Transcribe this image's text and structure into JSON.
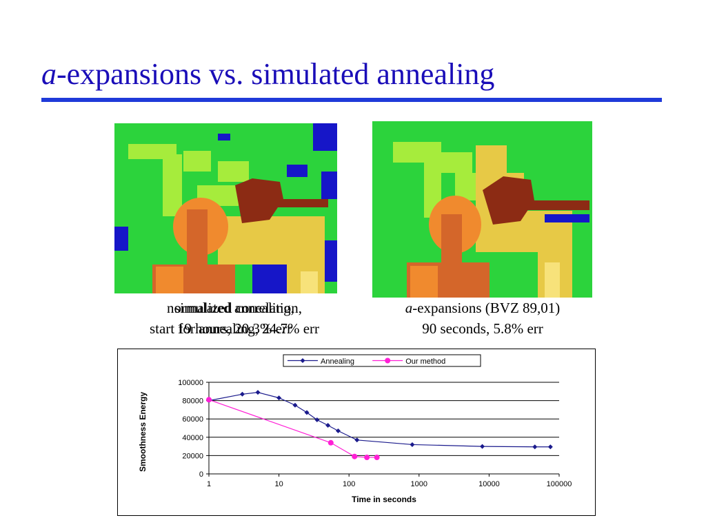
{
  "slide": {
    "title_italic": "a",
    "title_rest": "-expansions vs. simulated annealing"
  },
  "captions": {
    "left": {
      "line1_a": "simulated annealing,",
      "line1_b": "normalized correlation,",
      "line2_a": "19 hours,   20.3% err",
      "line2_b": "start for annealing, 24.7% err"
    },
    "right": {
      "line1_italic": "a",
      "line1_rest": "-expansions (BVZ 89,01)",
      "line2": "90 seconds,   5.8% err"
    }
  },
  "colors": {
    "title": "#1a0db8",
    "rule": "#1f3ad9",
    "annealing": "#1a1a8c",
    "our_method": "#ff1fd6",
    "depth_green": "#2cd33c",
    "depth_lime": "#a6ec3c",
    "depth_yellow": "#e7c946",
    "depth_orange": "#f08a2e",
    "depth_darkorange": "#d4662a",
    "depth_brown": "#8c2b14",
    "depth_blue": "#1616c8"
  },
  "chart_data": {
    "type": "line",
    "xscale": "log",
    "xlabel": "Time in seconds",
    "ylabel": "Smoothness Energy",
    "xlim": [
      1,
      100000
    ],
    "ylim": [
      0,
      100000
    ],
    "xticks": [
      "1",
      "10",
      "100",
      "1000",
      "10000",
      "100000"
    ],
    "yticks": [
      "0",
      "20000",
      "40000",
      "60000",
      "80000",
      "100000"
    ],
    "grid": "horizontal",
    "legend_position": "top",
    "series": [
      {
        "name": "Annealing",
        "marker": "diamond",
        "color": "#1a1a8c",
        "x": [
          1,
          3,
          5,
          10,
          17,
          25,
          35,
          50,
          70,
          130,
          800,
          8000,
          45000,
          75000
        ],
        "y": [
          80000,
          87000,
          89000,
          83000,
          75000,
          67000,
          59000,
          53000,
          47000,
          37000,
          32000,
          30000,
          29500,
          29500
        ]
      },
      {
        "name": "Our method",
        "marker": "circle",
        "color": "#ff1fd6",
        "x": [
          1,
          55,
          120,
          180,
          250
        ],
        "y": [
          81000,
          34000,
          19000,
          18000,
          18000
        ]
      }
    ]
  }
}
